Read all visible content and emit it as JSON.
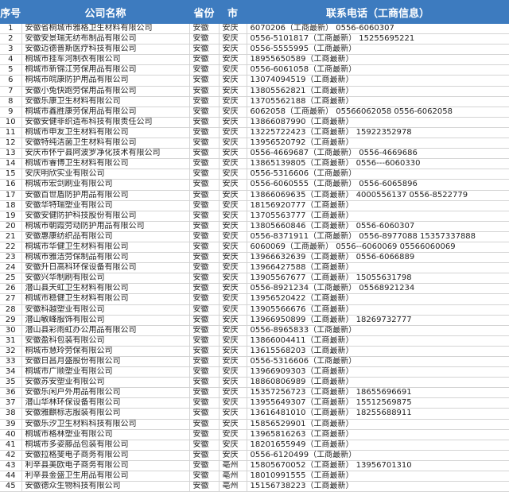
{
  "header_color": "#3d7bbf",
  "columns": [
    "序号",
    "公司名称",
    "省份",
    "市",
    "联系电话（工商信息）"
  ],
  "rows": [
    [
      "1",
      "安徽省桐城市雅格卫生材料有限公司",
      "安徽",
      "安庆",
      "6070206（工商最新） 0556-6060307"
    ],
    [
      "2",
      "安徽安景瑞无纺布制品有限公司",
      "安徽",
      "安庆",
      "0556-5101817（工商最新） 15255695221"
    ],
    [
      "3",
      "安徽迈德普斯医疗科技有限公司",
      "安徽",
      "安庆",
      "0556-5555995（工商最新）"
    ],
    [
      "4",
      "桐城市挂车河制衣有限公司",
      "安徽",
      "安庆",
      "18955650589（工商最新）"
    ],
    [
      "5",
      "桐城市新锦江劳保用品有限公司",
      "安徽",
      "安庆",
      "0556-6061058（工商最新）"
    ],
    [
      "6",
      "桐城市皖康防护用品有限公司",
      "安徽",
      "安庆",
      "13074094519（工商最新）"
    ],
    [
      "7",
      "安徽小兔快跑劳保用品有限公司",
      "安徽",
      "安庆",
      "13805562821（工商最新）"
    ],
    [
      "8",
      "安徽乐康卫生材料有限公司",
      "安徽",
      "安庆",
      "13705562188（工商最新）"
    ],
    [
      "9",
      "桐城市鑫胜康劳保用品有限公司",
      "安徽",
      "安庆",
      "6062058（工商最新） 05566062058 0556-6062058"
    ],
    [
      "10",
      "安徽安健非织造布科技有限责任公司",
      "安徽",
      "安庆",
      "13866087990（工商最新）"
    ],
    [
      "11",
      "桐城市申友卫生材料有限公司",
      "安徽",
      "安庆",
      "13225722423（工商最新） 15922352978"
    ],
    [
      "12",
      "安徽特纯洁菌卫生材料有限公司",
      "安徽",
      "安庆",
      "13956520792（工商最新）"
    ],
    [
      "13",
      "安庆市怀宁县阿波罗净化技术有限公司",
      "安徽",
      "安庆",
      "0556-4669687（工商最新） 0556-4669686"
    ],
    [
      "14",
      "桐城市睿博卫生材料有限公司",
      "安徽",
      "安庆",
      "13865139805（工商最新） 0556---6060330"
    ],
    [
      "15",
      "安庆明欣实业有限公司",
      "安徽",
      "安庆",
      "0556-5316606（工商最新）"
    ],
    [
      "16",
      "桐城市宏剑刷业有限公司",
      "安徽",
      "安庆",
      "0556-6060555（工商最新） 0556-6065896"
    ],
    [
      "17",
      "安徽百世盾防护用品有限公司",
      "安徽",
      "安庆",
      "13866069635（工商最新） 4000556137 0556-8522779"
    ],
    [
      "18",
      "安徽华特瑞塑业有限公司",
      "安徽",
      "安庆",
      "18156920777（工商最新）"
    ],
    [
      "19",
      "安徽安健防护科技股份有限公司",
      "安徽",
      "安庆",
      "13705563777（工商最新）"
    ],
    [
      "20",
      "桐城市朝霞劳动防护用品有限公司",
      "安徽",
      "安庆",
      "13805660846（工商最新） 0556-6060307"
    ],
    [
      "21",
      "安徽惠康纺织品有限公司",
      "安徽",
      "安庆",
      "0556-8371911（工商最新） 0556-8977088 15357337888"
    ],
    [
      "22",
      "桐城市华健卫生材料有限公司",
      "安徽",
      "安庆",
      "6060069（工商最新） 0556--6060069 05566060069"
    ],
    [
      "23",
      "桐城市雅洁劳保制品有限公司",
      "安徽",
      "安庆",
      "13966632639（工商最新） 0556-6066889"
    ],
    [
      "24",
      "安徽升日高科环保设备有限公司",
      "安徽",
      "安庆",
      "13966427588（工商最新）"
    ],
    [
      "25",
      "安徽兴华制刷有限公司",
      "安徽",
      "安庆",
      "13905567677（工商最新） 15055631798"
    ],
    [
      "26",
      "潜山县天虹卫生材料有限公司",
      "安徽",
      "安庆",
      "0556-8921234（工商最新） 05568921234"
    ],
    [
      "27",
      "桐城市稳健卫生材料有限公司",
      "安徽",
      "安庆",
      "13956520422（工商最新）"
    ],
    [
      "28",
      "安徽科越塑业有限公司",
      "安徽",
      "安庆",
      "13905566676（工商最新）"
    ],
    [
      "29",
      "潜山敏峰服饰有限公司",
      "安徽",
      "安庆",
      "13966950899（工商最新） 18269732777"
    ],
    [
      "30",
      "潜山县彩雨虹办公用品有限公司",
      "安徽",
      "安庆",
      "0556-8965833（工商最新）"
    ],
    [
      "31",
      "安徽盈科包装有限公司",
      "安徽",
      "安庆",
      "13866004411（工商最新）"
    ],
    [
      "32",
      "桐城市慧玲劳保有限公司",
      "安徽",
      "安庆",
      "13615568203（工商最新）"
    ],
    [
      "33",
      "安徽日昌月盛股份有限公司",
      "安徽",
      "安庆",
      "0556-5316606（工商最新）"
    ],
    [
      "34",
      "桐城市广顺塑业有限公司",
      "安徽",
      "安庆",
      "13966909303（工商最新）"
    ],
    [
      "35",
      "安徽苏安塑业有限公司",
      "安徽",
      "安庆",
      "18860806989（工商最新）"
    ],
    [
      "36",
      "安徽乐闲户外用品有限公司",
      "安徽",
      "安庆",
      "15357256723（工商最新） 18655696691"
    ],
    [
      "37",
      "潜山华林环保设备有限公司",
      "安徽",
      "安庆",
      "13955649307（工商最新） 15512569875"
    ],
    [
      "38",
      "安徽雅麒标志服装有限公司",
      "安徽",
      "安庆",
      "13616481010（工商最新） 18255688911"
    ],
    [
      "39",
      "安徽乐汐卫生材料科技有限公司",
      "安徽",
      "安庆",
      "15856529901（工商最新）"
    ],
    [
      "40",
      "桐城市格林塑业有限公司",
      "安徽",
      "安庆",
      "13965816263（工商最新）"
    ],
    [
      "41",
      "桐城市多姿藤品包装有限公司",
      "安徽",
      "安庆",
      "18201655949（工商最新）"
    ],
    [
      "42",
      "安徽拉格斐电子商务有限公司",
      "安徽",
      "安庆",
      "0556-6120499（工商最新）"
    ],
    [
      "43",
      "利辛县美欧电子商务有限公司",
      "安徽",
      "亳州",
      "15805670052（工商最新） 13956701310"
    ],
    [
      "44",
      "利辛县金盛卫生用品有限公司",
      "安徽",
      "亳州",
      "18010991555（工商最新）"
    ],
    [
      "45",
      "安徽德众生物科技有限公司",
      "安徽",
      "亳州",
      "15156738223（工商最新）"
    ]
  ]
}
